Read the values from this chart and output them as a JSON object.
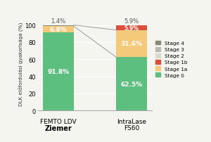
{
  "stage0": [
    91.8,
    62.5
  ],
  "stage1a": [
    6.8,
    31.6
  ],
  "stage1b": [
    0.0,
    5.9
  ],
  "stage4": [
    1.4,
    0.0
  ],
  "stage0_color": "#5dbf7f",
  "stage1a_color": "#f5c97a",
  "stage1b_color": "#d94f3c",
  "stage2_color": "#d9d9d0",
  "stage3_color": "#b8b8b0",
  "stage4_color": "#888878",
  "stage0_label": "Stage 0",
  "stage1a_label": "Stage 1a",
  "stage1b_label": "Stage 1b",
  "stage2_label": "Stage 2",
  "stage3_label": "Stage 3",
  "stage4_label": "Stage 4",
  "ylabel": "DLK előfordulási gyakorisága (%)",
  "ylim": [
    0,
    110
  ],
  "yticks": [
    0,
    20,
    40,
    60,
    80,
    100
  ],
  "bg_color": "#f5f5f0",
  "bar_width": 0.42
}
